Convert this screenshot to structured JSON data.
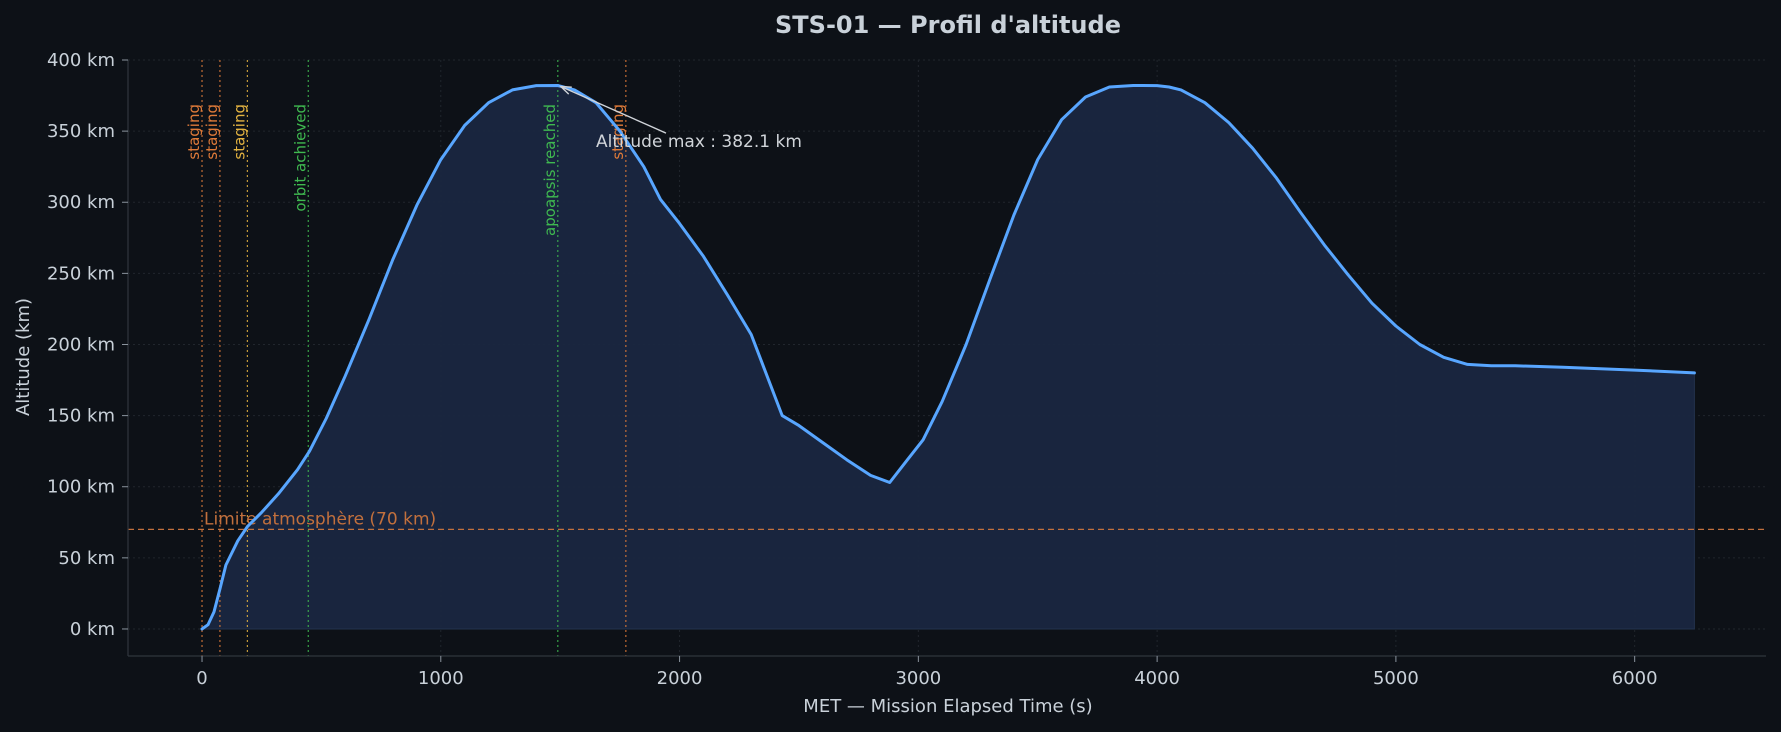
{
  "chart_data": {
    "type": "area",
    "title": "STS-01 — Profil d'altitude",
    "xlabel": "MET — Mission Elapsed Time (s)",
    "ylabel": "Altitude (km)",
    "xlim": [
      -310,
      6550
    ],
    "ylim": [
      -19,
      400
    ],
    "xticks": [
      0,
      1000,
      2000,
      3000,
      4000,
      5000,
      6000
    ],
    "xtick_labels": [
      "0",
      "1000",
      "2000",
      "3000",
      "4000",
      "5000",
      "6000"
    ],
    "yticks": [
      0,
      50,
      100,
      150,
      200,
      250,
      300,
      350,
      400
    ],
    "ytick_labels": [
      "0 km",
      "50 km",
      "100 km",
      "150 km",
      "200 km",
      "250 km",
      "300 km",
      "350 km",
      "400 km"
    ],
    "grid": true,
    "colors": {
      "background": "#0d1117",
      "line": "#58a6ff",
      "fill": "#1a2740",
      "staging": "#e07b39",
      "staging_alt": "#e3b341",
      "event_green": "#3fb950",
      "limit": "#c2703d"
    },
    "series": [
      {
        "x": [
          0,
          25,
          50,
          75,
          100,
          150,
          190,
          250,
          320,
          400,
          450,
          520,
          600,
          700,
          800,
          900,
          1000,
          1100,
          1200,
          1300,
          1400,
          1490,
          1560,
          1650,
          1750,
          1850,
          1920,
          2000,
          2100,
          2200,
          2300,
          2430,
          2500,
          2600,
          2700,
          2800,
          2880,
          2950,
          3020,
          3100,
          3200,
          3300,
          3400,
          3500,
          3600,
          3700,
          3800,
          3900,
          4000,
          4050,
          4100,
          4200,
          4300,
          4400,
          4500,
          4600,
          4700,
          4800,
          4900,
          5000,
          5100,
          5200,
          5300,
          5400,
          5500,
          5700,
          6000,
          6250
        ],
        "y": [
          0,
          3,
          12,
          28,
          45,
          62,
          72,
          82,
          95,
          112,
          125,
          148,
          178,
          218,
          260,
          298,
          330,
          354,
          370,
          379,
          382,
          382.1,
          379,
          370,
          350,
          325,
          302,
          285,
          262,
          235,
          207,
          150,
          143,
          131,
          119,
          108,
          103,
          118,
          133,
          160,
          200,
          246,
          291,
          330,
          358,
          374,
          381,
          382.1,
          382,
          381,
          379,
          370,
          356,
          338,
          317,
          293,
          270,
          249,
          229,
          213,
          200,
          191,
          186,
          185,
          185,
          184,
          182,
          180
        ]
      }
    ],
    "events": [
      {
        "x": 0,
        "label": "staging",
        "color": "#e07b39"
      },
      {
        "x": 75,
        "label": "staging",
        "color": "#e07b39"
      },
      {
        "x": 190,
        "label": "staging",
        "color": "#e3b341"
      },
      {
        "x": 445,
        "label": "orbit achieved",
        "color": "#3fb950"
      },
      {
        "x": 1490,
        "label": "apoapsis reached",
        "color": "#3fb950"
      },
      {
        "x": 1775,
        "label": "staging",
        "color": "#e07b39"
      }
    ],
    "hline": {
      "y": 70,
      "label": "Limite atmosphère (70 km)"
    },
    "annotation": {
      "text": "Altitude max : 382.1 km",
      "x": 1490,
      "y": 382.1,
      "text_x": 1650,
      "text_y": 343
    }
  }
}
